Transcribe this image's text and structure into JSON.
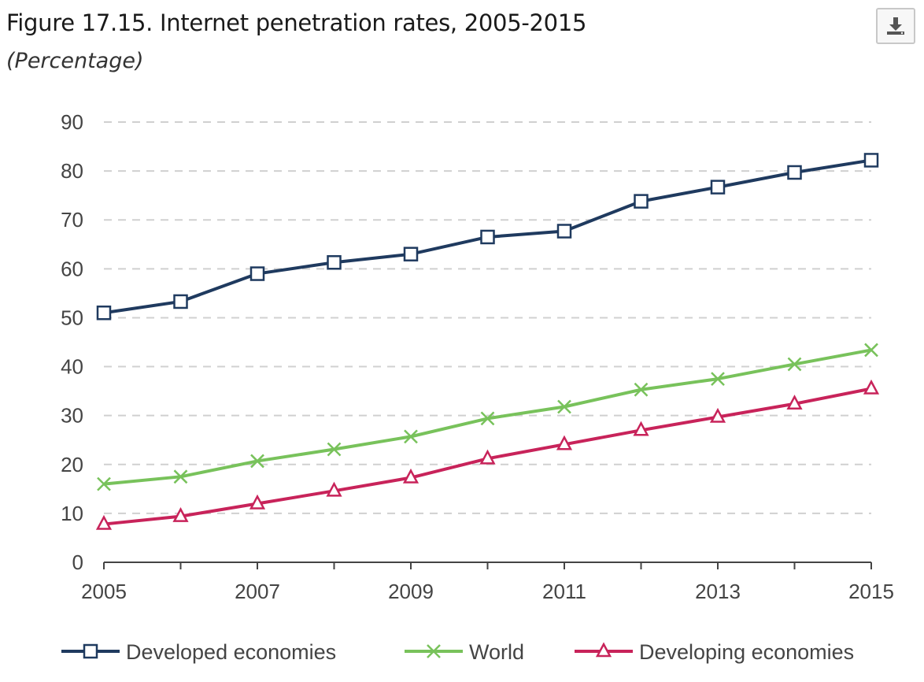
{
  "figure": {
    "title": "Figure 17.15. Internet penetration rates, 2005-2015",
    "subtitle": "(Percentage)",
    "download_icon": "download-icon"
  },
  "chart_data": {
    "type": "line",
    "title": "Figure 17.15. Internet penetration rates, 2005-2015",
    "subtitle": "(Percentage)",
    "xlabel": "",
    "ylabel": "",
    "x": [
      2005,
      2006,
      2007,
      2008,
      2009,
      2010,
      2011,
      2012,
      2013,
      2014,
      2015
    ],
    "x_tick_labels": [
      "2005",
      "2007",
      "2009",
      "2011",
      "2013",
      "2015"
    ],
    "y_tick_labels": [
      "0",
      "10",
      "20",
      "30",
      "40",
      "50",
      "60",
      "70",
      "80",
      "90"
    ],
    "ylim": [
      0,
      90
    ],
    "grid": "horizontal dashed",
    "legend_position": "bottom",
    "series": [
      {
        "name": "Developed economies",
        "color": "#1f3a5f",
        "marker": "square",
        "values": [
          51,
          53.3,
          59,
          61.3,
          63,
          66.5,
          67.7,
          73.8,
          76.7,
          79.7,
          82.2
        ]
      },
      {
        "name": "World",
        "color": "#78c25b",
        "marker": "x",
        "values": [
          16,
          17.5,
          20.7,
          23.1,
          25.7,
          29.4,
          31.8,
          35.3,
          37.5,
          40.5,
          43.4
        ]
      },
      {
        "name": "Developing economies",
        "color": "#c8235a",
        "marker": "triangle",
        "values": [
          7.8,
          9.4,
          12,
          14.6,
          17.3,
          21.2,
          24.1,
          27,
          29.7,
          32.4,
          35.5
        ]
      }
    ]
  }
}
